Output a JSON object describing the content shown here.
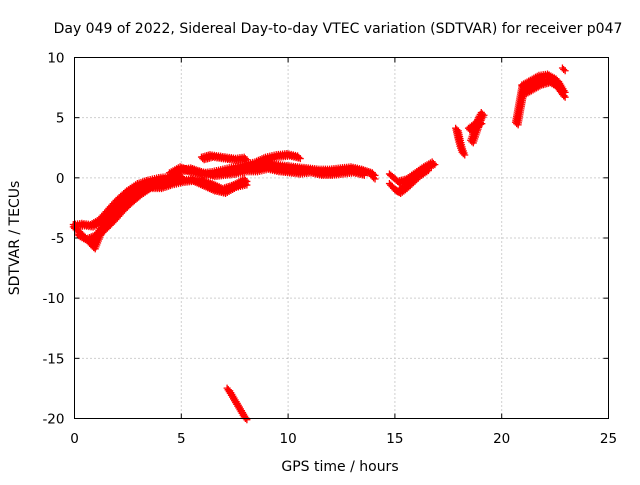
{
  "chart_data": {
    "type": "scatter",
    "title": "Day 049 of 2022, Sidereal Day-to-day VTEC variation (SDTVAR) for receiver p047",
    "xlabel": "GPS time / hours",
    "ylabel": "SDTVAR / TECUs",
    "xlim": [
      0,
      25
    ],
    "ylim": [
      -20,
      10
    ],
    "xticks": [
      0,
      5,
      10,
      15,
      20,
      25
    ],
    "yticks": [
      -20,
      -15,
      -10,
      -5,
      0,
      5,
      10
    ],
    "xtick_labels": [
      "0",
      "5",
      "10",
      "15",
      "20",
      "25"
    ],
    "ytick_labels": [
      "-20",
      "-15",
      "-10",
      "-5",
      "0",
      "5",
      "10"
    ],
    "grid": true,
    "marker": "+",
    "series": [
      {
        "name": "SDTVAR",
        "color": "#ff0000",
        "segments": [
          {
            "x": [
              0.0,
              0.3,
              0.6,
              0.9,
              1.2,
              1.6,
              2.0,
              2.5,
              3.0,
              3.5,
              4.0,
              4.5,
              5.0,
              5.5,
              6.0,
              6.5,
              7.0,
              7.5,
              8.0
            ],
            "y": [
              -4.2,
              -4.6,
              -5.2,
              -5.8,
              -4.5,
              -3.5,
              -2.6,
              -1.8,
              -1.2,
              -0.8,
              -0.8,
              -0.5,
              -0.3,
              -0.2,
              -0.3,
              -0.6,
              -1.0,
              -0.7,
              -0.5
            ]
          },
          {
            "x": [
              0.0,
              0.4,
              0.8,
              1.2,
              1.6,
              2.0,
              2.5,
              3.0,
              3.5,
              4.0,
              4.5,
              5.0
            ],
            "y": [
              -4.0,
              -3.9,
              -4.0,
              -3.6,
              -2.8,
              -2.0,
              -1.2,
              -0.6,
              -0.3,
              -0.1,
              0.0,
              0.1
            ]
          },
          {
            "x": [
              0.2,
              0.6,
              1.0,
              1.4,
              1.8,
              2.2,
              2.6,
              3.0,
              3.4,
              3.8,
              4.2
            ],
            "y": [
              -4.8,
              -5.2,
              -4.9,
              -4.2,
              -3.5,
              -2.7,
              -2.0,
              -1.4,
              -0.9,
              -0.4,
              -0.2
            ]
          },
          {
            "x": [
              4.5,
              5.0,
              5.5,
              6.0,
              6.5,
              7.0,
              7.5,
              8.0,
              8.5,
              9.0,
              9.5,
              10.0,
              10.5,
              11.0,
              11.5,
              12.0,
              12.5,
              13.0,
              13.5,
              14.0
            ],
            "y": [
              0.3,
              0.8,
              0.5,
              0.3,
              0.4,
              0.6,
              0.8,
              0.9,
              1.0,
              1.2,
              1.0,
              0.9,
              0.8,
              0.7,
              0.6,
              0.6,
              0.7,
              0.8,
              0.6,
              0.3
            ]
          },
          {
            "x": [
              5.0,
              5.5,
              6.0,
              6.5,
              7.0,
              7.5,
              8.0,
              8.5,
              9.0,
              9.5,
              10.0,
              10.5,
              11.0,
              11.5,
              12.0,
              12.5,
              13.0,
              13.5
            ],
            "y": [
              0.6,
              0.7,
              0.4,
              0.2,
              0.3,
              0.4,
              0.6,
              0.6,
              0.8,
              0.6,
              0.5,
              0.4,
              0.5,
              0.3,
              0.3,
              0.4,
              0.5,
              0.3
            ]
          },
          {
            "x": [
              6.0,
              6.4,
              6.8,
              7.2,
              7.6,
              8.0
            ],
            "y": [
              1.6,
              1.8,
              1.7,
              1.6,
              1.5,
              1.6
            ]
          },
          {
            "x": [
              5.5,
              6.0,
              6.5,
              7.0,
              7.5,
              8.0
            ],
            "y": [
              -0.2,
              -0.6,
              -1.0,
              -1.2,
              -0.7,
              -0.2
            ]
          },
          {
            "x": [
              8.0,
              8.5,
              9.0,
              9.5,
              10.0,
              10.5
            ],
            "y": [
              1.0,
              1.2,
              1.6,
              1.8,
              1.9,
              1.7
            ]
          },
          {
            "x": [
              7.2,
              7.4,
              7.6,
              7.8,
              8.0
            ],
            "y": [
              -17.6,
              -18.2,
              -18.8,
              -19.4,
              -20.0
            ]
          },
          {
            "x": [
              14.8,
              15.2,
              15.6,
              16.0,
              16.4,
              16.8
            ],
            "y": [
              0.2,
              -0.4,
              -0.2,
              0.3,
              0.8,
              1.2
            ]
          },
          {
            "x": [
              14.8,
              15.0,
              15.2,
              15.5,
              15.8,
              16.1,
              16.5
            ],
            "y": [
              -0.6,
              -1.0,
              -1.2,
              -0.8,
              -0.3,
              0.2,
              0.7
            ]
          },
          {
            "x": [
              17.9,
              18.0,
              18.1,
              18.2
            ],
            "y": [
              4.0,
              3.2,
              2.5,
              2.0
            ]
          },
          {
            "x": [
              18.6,
              18.7,
              18.8,
              18.9,
              19.0,
              19.1
            ],
            "y": [
              3.0,
              3.5,
              4.0,
              4.6,
              5.0,
              5.3
            ]
          },
          {
            "x": [
              18.5,
              18.8,
              19.0
            ],
            "y": [
              4.0,
              4.4,
              4.6
            ]
          },
          {
            "x": [
              20.7,
              20.8,
              20.9,
              21.0
            ],
            "y": [
              4.5,
              5.5,
              6.5,
              7.5
            ]
          },
          {
            "x": [
              21.0,
              21.4,
              21.8,
              22.2,
              22.6,
              22.9
            ],
            "y": [
              7.6,
              8.0,
              8.4,
              8.5,
              8.1,
              7.2
            ]
          },
          {
            "x": [
              21.0,
              21.4,
              21.8,
              22.2,
              22.6,
              22.9
            ],
            "y": [
              7.0,
              7.4,
              7.8,
              8.0,
              7.6,
              6.8
            ]
          },
          {
            "x": [
              22.9
            ],
            "y": [
              9.0
            ]
          },
          {
            "x": [
              14.0
            ],
            "y": [
              0.0
            ]
          }
        ]
      }
    ]
  }
}
